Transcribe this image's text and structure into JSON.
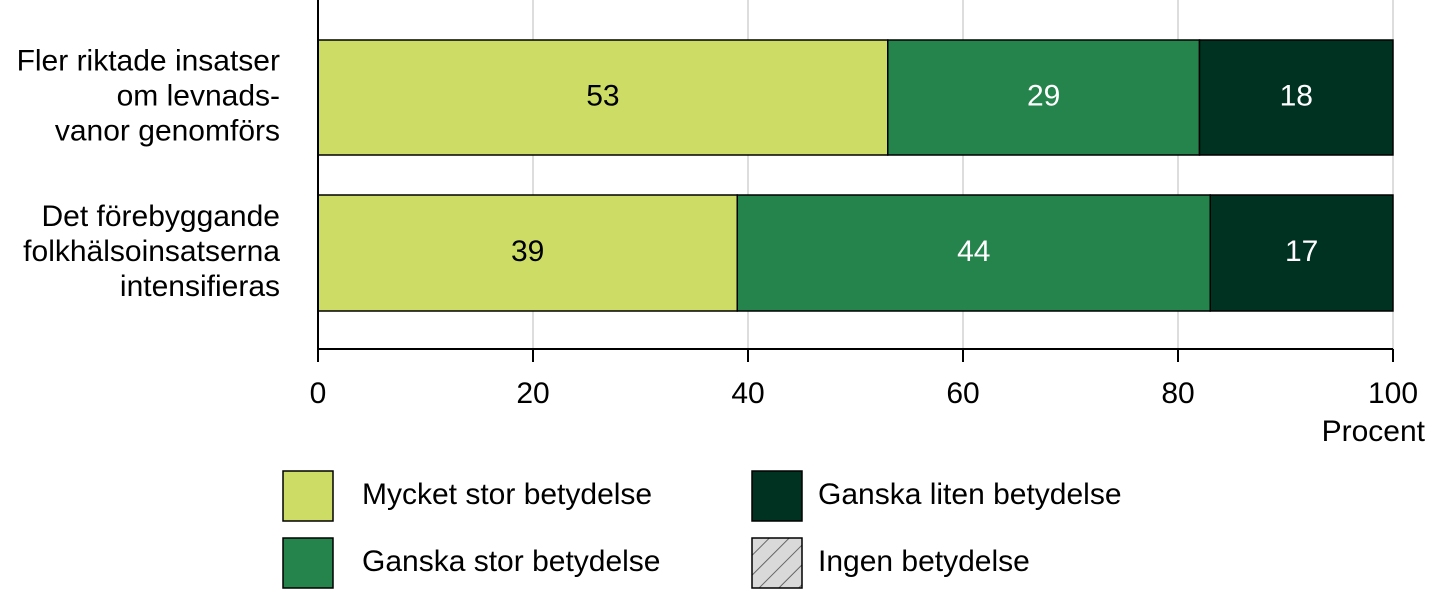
{
  "chart_data": {
    "type": "stacked_bar_horizontal",
    "categories": [
      [
        "Fler riktade insatser",
        "om levnads-",
        "vanor genomförs"
      ],
      [
        "Det förebyggande",
        "folkhälsoinsatserna",
        "intensifieras"
      ]
    ],
    "series": [
      {
        "name": "Mycket stor betydelse",
        "color": "#cddc64",
        "label_color": "#000000",
        "values": [
          53,
          39
        ]
      },
      {
        "name": "Ganska stor betydelse",
        "color": "#24844c",
        "label_color": "#ffffff",
        "values": [
          29,
          44
        ]
      },
      {
        "name": "Ganska liten betydelse",
        "color": "#003221",
        "label_color": "#ffffff",
        "values": [
          18,
          17
        ]
      },
      {
        "name": "Ingen betydelse",
        "color": "#d9d9d9",
        "hatch": true,
        "values": [
          0,
          0
        ]
      }
    ],
    "xlim": [
      0,
      100
    ],
    "xticks": [
      0,
      20,
      40,
      60,
      80,
      100
    ],
    "xlabel": "Procent",
    "grid": true
  }
}
